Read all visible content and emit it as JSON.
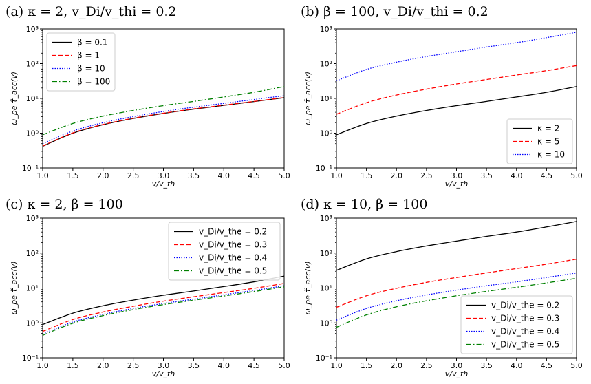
{
  "chart_data": [
    {
      "type": "line",
      "title": "(a) κ = 2, v_Di/v_thi = 0.2",
      "xlabel": "v/v_th",
      "ylabel": "ω_pe τ̃_acc(v)",
      "xlim": [
        1.0,
        5.0
      ],
      "ylim": [
        0.1,
        1000
      ],
      "yscale": "log",
      "x_ticks": [
        "1.0",
        "1.5",
        "2.0",
        "2.5",
        "3.0",
        "3.5",
        "4.0",
        "4.5",
        "5.0"
      ],
      "y_ticks": [
        "10⁻¹",
        "10⁰",
        "10¹",
        "10²",
        "10³"
      ],
      "legend_position": "top-left",
      "x": [
        1.0,
        1.5,
        2.0,
        2.5,
        3.0,
        3.5,
        4.0,
        4.5,
        5.0
      ],
      "series": [
        {
          "name": "β = 0.1",
          "color": "#000000",
          "dash": "solid",
          "values": [
            0.42,
            1.0,
            1.75,
            2.65,
            3.7,
            4.9,
            6.3,
            8.1,
            10.5
          ]
        },
        {
          "name": "β = 1",
          "color": "#ff0000",
          "dash": "dashed",
          "values": [
            0.43,
            1.02,
            1.78,
            2.7,
            3.75,
            5.0,
            6.4,
            8.2,
            10.6
          ]
        },
        {
          "name": "β = 10",
          "color": "#0000ff",
          "dash": "dotted",
          "values": [
            0.5,
            1.15,
            2.0,
            3.0,
            4.2,
            5.6,
            7.2,
            9.3,
            12.0
          ]
        },
        {
          "name": "β = 100",
          "color": "#008000",
          "dash": "dashdot",
          "values": [
            0.9,
            1.9,
            3.1,
            4.5,
            6.2,
            8.2,
            11.0,
            15.0,
            22.0
          ]
        }
      ]
    },
    {
      "type": "line",
      "title": "(b) β = 100, v_Di/v_thi = 0.2",
      "xlabel": "v/v_th",
      "ylabel": "ω_pe τ̃_acc(v)",
      "xlim": [
        1.0,
        5.0
      ],
      "ylim": [
        0.1,
        1000
      ],
      "yscale": "log",
      "x_ticks": [
        "1.0",
        "1.5",
        "2.0",
        "2.5",
        "3.0",
        "3.5",
        "4.0",
        "4.5",
        "5.0"
      ],
      "y_ticks": [
        "10⁻¹",
        "10⁰",
        "10¹",
        "10²",
        "10³"
      ],
      "legend_position": "bottom-right",
      "x": [
        1.0,
        1.5,
        2.0,
        2.5,
        3.0,
        3.5,
        4.0,
        4.5,
        5.0
      ],
      "series": [
        {
          "name": "κ = 2",
          "color": "#000000",
          "dash": "solid",
          "values": [
            0.9,
            1.9,
            3.1,
            4.5,
            6.2,
            8.2,
            11.0,
            15.0,
            22.0
          ]
        },
        {
          "name": "κ = 5",
          "color": "#ff0000",
          "dash": "dashed",
          "values": [
            3.5,
            7.5,
            12.5,
            18.5,
            26.0,
            35.0,
            47.0,
            63.0,
            88.0
          ]
        },
        {
          "name": "κ = 10",
          "color": "#0000ff",
          "dash": "dotted",
          "values": [
            32.0,
            68.0,
            110.0,
            160.0,
            220.0,
            300.0,
            400.0,
            560.0,
            800.0
          ]
        }
      ]
    },
    {
      "type": "line",
      "title": "(c) κ = 2, β = 100",
      "xlabel": "v/v_th",
      "ylabel": "ω_pe τ̃_acc(v)",
      "xlim": [
        1.0,
        5.0
      ],
      "ylim": [
        0.1,
        1000
      ],
      "yscale": "log",
      "x_ticks": [
        "1.0",
        "1.5",
        "2.0",
        "2.5",
        "3.0",
        "3.5",
        "4.0",
        "4.5",
        "5.0"
      ],
      "y_ticks": [
        "10⁻¹",
        "10⁰",
        "10¹",
        "10²",
        "10³"
      ],
      "legend_position": "top-right",
      "x": [
        1.0,
        1.5,
        2.0,
        2.5,
        3.0,
        3.5,
        4.0,
        4.5,
        5.0
      ],
      "series": [
        {
          "name": "v_Di/v_the = 0.2",
          "color": "#000000",
          "dash": "solid",
          "values": [
            0.9,
            1.9,
            3.1,
            4.5,
            6.2,
            8.2,
            11.0,
            15.0,
            22.0
          ]
        },
        {
          "name": "v_Di/v_the = 0.3",
          "color": "#ff0000",
          "dash": "dashed",
          "values": [
            0.57,
            1.25,
            2.05,
            3.0,
            4.2,
            5.6,
            7.4,
            9.8,
            13.5
          ]
        },
        {
          "name": "v_Di/v_the = 0.4",
          "color": "#0000ff",
          "dash": "dotted",
          "values": [
            0.48,
            1.06,
            1.75,
            2.6,
            3.6,
            4.8,
            6.4,
            8.5,
            11.6
          ]
        },
        {
          "name": "v_Di/v_the = 0.5",
          "color": "#008000",
          "dash": "dashdot",
          "values": [
            0.44,
            0.98,
            1.62,
            2.4,
            3.35,
            4.45,
            5.9,
            7.9,
            10.8
          ]
        }
      ]
    },
    {
      "type": "line",
      "title": "(d) κ = 10, β = 100",
      "xlabel": "v/v_th",
      "ylabel": "ω_pe τ̃_acc(v)",
      "xlim": [
        1.0,
        5.0
      ],
      "ylim": [
        0.1,
        1000
      ],
      "yscale": "log",
      "x_ticks": [
        "1.0",
        "1.5",
        "2.0",
        "2.5",
        "3.0",
        "3.5",
        "4.0",
        "4.5",
        "5.0"
      ],
      "y_ticks": [
        "10⁻¹",
        "10⁰",
        "10¹",
        "10²",
        "10³"
      ],
      "legend_position": "bottom-right",
      "x": [
        1.0,
        1.5,
        2.0,
        2.5,
        3.0,
        3.5,
        4.0,
        4.5,
        5.0
      ],
      "series": [
        {
          "name": "v_Di/v_the = 0.2",
          "color": "#000000",
          "dash": "solid",
          "values": [
            32.0,
            68.0,
            110.0,
            160.0,
            220.0,
            300.0,
            400.0,
            560.0,
            800.0
          ]
        },
        {
          "name": "v_Di/v_the = 0.3",
          "color": "#ff0000",
          "dash": "dashed",
          "values": [
            2.8,
            6.0,
            9.8,
            14.5,
            20.0,
            27.0,
            36.0,
            48.0,
            67.0
          ]
        },
        {
          "name": "v_Di/v_the = 0.4",
          "color": "#0000ff",
          "dash": "dotted",
          "values": [
            1.2,
            2.6,
            4.3,
            6.3,
            8.7,
            11.6,
            15.0,
            20.0,
            27.0
          ]
        },
        {
          "name": "v_Di/v_the = 0.5",
          "color": "#008000",
          "dash": "dashdot",
          "values": [
            0.75,
            1.7,
            2.9,
            4.3,
            6.0,
            8.0,
            10.5,
            14.0,
            19.0
          ]
        }
      ]
    }
  ]
}
